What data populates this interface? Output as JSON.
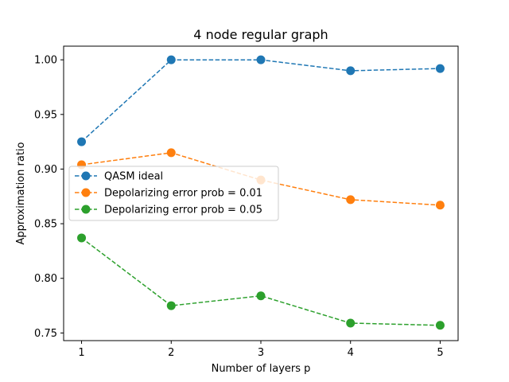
{
  "chart_data": {
    "type": "line",
    "title": "4 node regular graph",
    "xlabel": "Number of layers p",
    "ylabel": "Approximation ratio",
    "x": [
      1,
      2,
      3,
      4,
      5
    ],
    "xticks": [
      "1",
      "2",
      "3",
      "4",
      "5"
    ],
    "yticks": [
      "0.75",
      "0.80",
      "0.85",
      "0.90",
      "0.95",
      "1.00"
    ],
    "ylim": [
      0.743,
      1.0125
    ],
    "xlim": [
      0.8,
      5.2
    ],
    "grid": false,
    "legend_position": "center-left",
    "line_style": "dashed",
    "marker": "circle",
    "series": [
      {
        "name": "QASM ideal",
        "color": "#1f77b4",
        "values": [
          0.925,
          1.0,
          1.0,
          0.99,
          0.992
        ]
      },
      {
        "name": "Depolarizing error prob = 0.01",
        "color": "#ff7f0e",
        "values": [
          0.904,
          0.915,
          0.89,
          0.872,
          0.867
        ]
      },
      {
        "name": "Depolarizing error prob = 0.05",
        "color": "#2ca02c",
        "values": [
          0.837,
          0.775,
          0.784,
          0.759,
          0.757
        ]
      }
    ]
  }
}
